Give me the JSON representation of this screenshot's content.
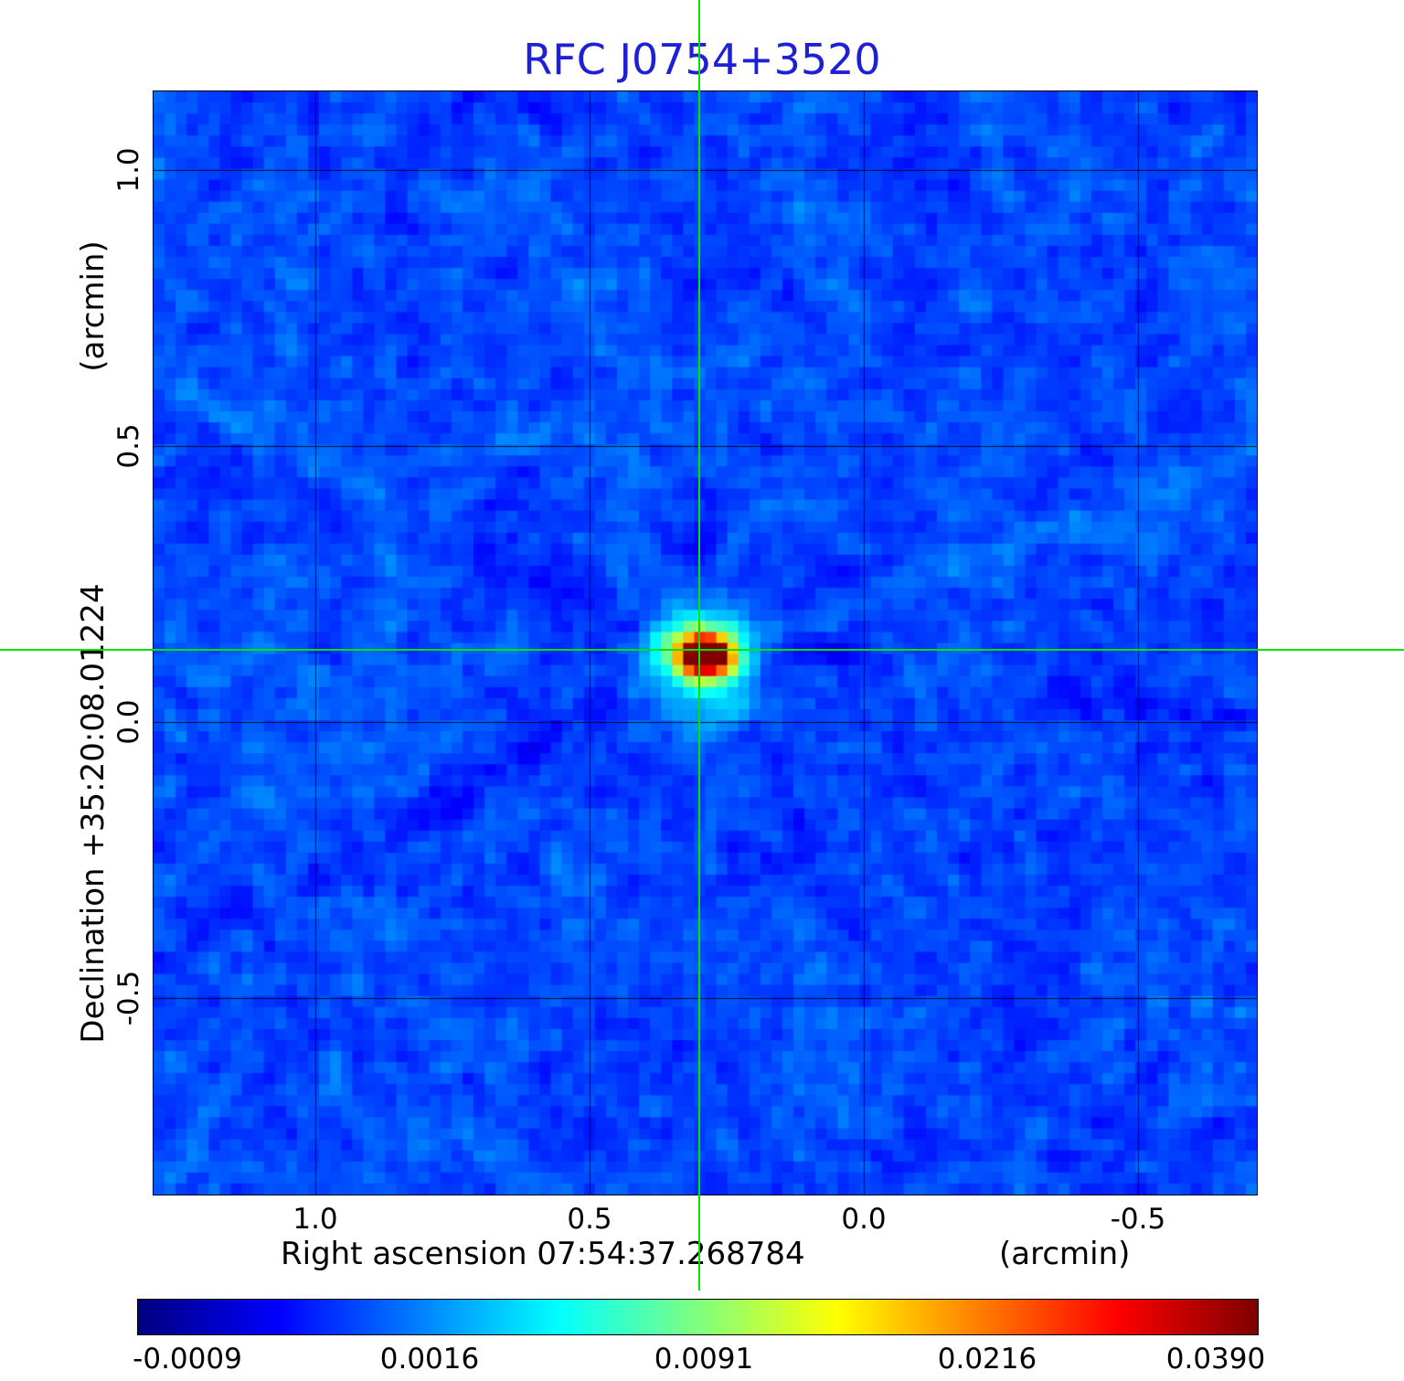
{
  "title": "RFC J0754+3520",
  "colors": {
    "title": "#1f1fd6",
    "crosshair": "#00e400",
    "grid": "#000000",
    "background": "#ffffff"
  },
  "y_axis": {
    "unit_label": "(arcmin)",
    "axis_label": "Declination  +35:20:08.01224",
    "ticks": [
      "1.0",
      "0.5",
      "0.0",
      "-0.5"
    ]
  },
  "x_axis": {
    "label": "Right ascension  07:54:37.268784",
    "unit_label": "(arcmin)",
    "ticks": [
      "1.0",
      "0.5",
      "0.0",
      "-0.5"
    ]
  },
  "colorbar": {
    "ticks": [
      "-0.0009",
      "0.0016",
      "0.0091",
      "0.0216",
      "0.0390"
    ]
  },
  "chart_data": {
    "type": "heatmap",
    "title": "RFC J0754+3520",
    "xlabel": "Right ascension 07:54:37.268784 (arcmin)",
    "ylabel": "Declination +35:20:08.01224 (arcmin)",
    "x_ticks_arcmin": [
      1.0,
      0.5,
      0.0,
      -0.5
    ],
    "y_ticks_arcmin": [
      1.0,
      0.5,
      0.0,
      -0.5
    ],
    "x_range_arcmin": [
      1.295,
      -0.717
    ],
    "y_range_arcmin": [
      1.142,
      -0.856
    ],
    "colormap": "jet",
    "colorbar_ticks": [
      -0.0009,
      0.0016,
      0.0091,
      0.0216,
      0.039
    ],
    "value_range": [
      -0.0009,
      0.039
    ],
    "grid": true,
    "crosshair_arcmin": {
      "x": 0.3,
      "y": 0.13
    },
    "source": {
      "x_arcmin": 0.3,
      "y_arcmin": 0.13,
      "peak_value": 0.039,
      "description": "single compact bright source at the green crosshair, slightly elongated east-west, surrounded by yellow/green halo and faint radial sidelobe streaks over a blue noise background"
    },
    "background_level": 0.0016
  }
}
